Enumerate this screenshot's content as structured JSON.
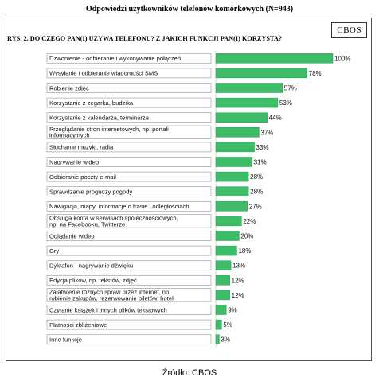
{
  "header": {
    "title": "Odpowiedzi użytkowników telefonów komórkowych (N=943)"
  },
  "brand": "CBOS",
  "question": "RYS. 2. DO CZEGO PAN(I) UŻYWA TELEFONU? Z JAKICH FUNKCJI PAN(I) KORZYSTA?",
  "source": "Źródło: CBOS",
  "colors": {
    "bar": "#3dbd68",
    "bar_edge": "#2d9a52",
    "label_box": "#a0a0a0"
  },
  "chart_data": {
    "type": "bar",
    "orientation": "horizontal",
    "categories": [
      [
        "Dzwonienie - odbieranie i wykonywanie połączeń"
      ],
      [
        "Wysyłanie i odbieranie wiadomości SMS"
      ],
      [
        "Robienie zdjęć"
      ],
      [
        "Korzystanie z zegarka, budzika"
      ],
      [
        "Korzystanie z kalendarza, terminarza"
      ],
      [
        "Przeglądanie stron internetowych, np. portali",
        "informacyjnych"
      ],
      [
        "Słuchanie muzyki, radia"
      ],
      [
        "Nagrywanie wideo"
      ],
      [
        "Odbieranie poczty e-mail"
      ],
      [
        "Sprawdzanie prognozy pogody"
      ],
      [
        "Nawigacja, mapy, informacje o trasie i odległościach"
      ],
      [
        "Obsługa konta w serwisach społecznościowych,",
        "np. na Facebooku, Twitterze"
      ],
      [
        "Oglądanie wideo"
      ],
      [
        "Gry"
      ],
      [
        "Dyktafon - nagrywanie dźwięku"
      ],
      [
        "Edycja plików, np. tekstów, zdjęć"
      ],
      [
        "Załatwienie różnych spraw przez internet, np.",
        "robienie zakupów, rezerwowanie biletów, hoteli"
      ],
      [
        "Czytanie książek i innych plików tekstowych"
      ],
      [
        "Płatności zbliżeniowe"
      ],
      [
        "Inne funkcje"
      ]
    ],
    "values": [
      100,
      78,
      57,
      53,
      44,
      37,
      33,
      31,
      28,
      28,
      27,
      22,
      20,
      18,
      13,
      12,
      12,
      9,
      5,
      3
    ],
    "value_labels": [
      "100%",
      "78%",
      "57%",
      "53%",
      "44%",
      "37%",
      "33%",
      "31%",
      "28%",
      "28%",
      "27%",
      "22%",
      "20%",
      "18%",
      "13%",
      "12%",
      "12%",
      "9%",
      "5%",
      "3%"
    ],
    "xlim": [
      0,
      100
    ],
    "grid": false,
    "legend": "none"
  }
}
